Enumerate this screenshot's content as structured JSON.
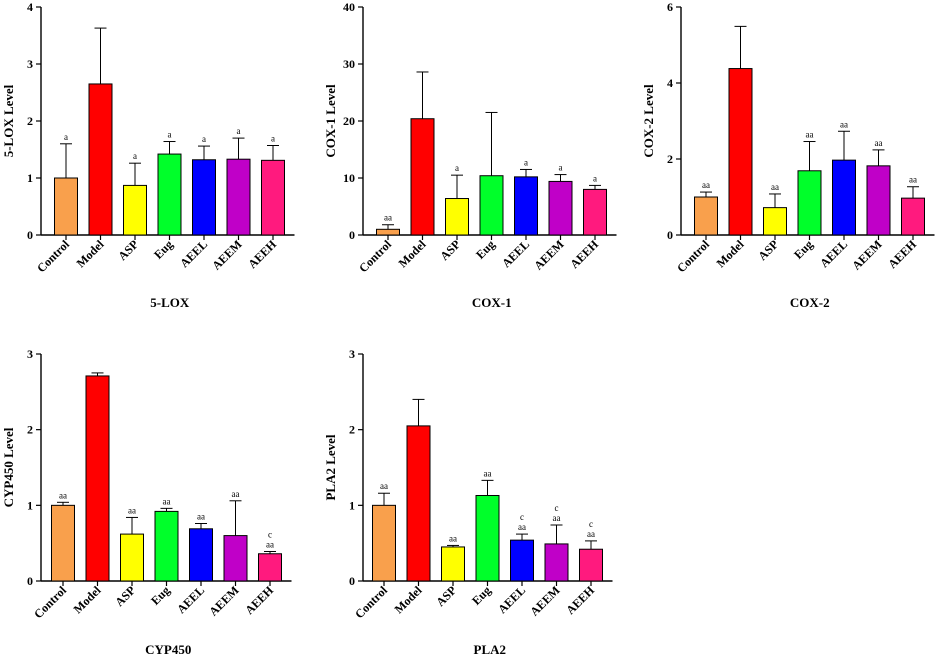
{
  "chart_data": [
    {
      "type": "bar",
      "title": "5-LOX",
      "ylabel": "5-LOX Level",
      "xlabel": "",
      "ylim": [
        0,
        4
      ],
      "yticks": [
        0,
        1,
        2,
        3,
        4
      ],
      "categories": [
        "Control",
        "Model",
        "ASP",
        "Eug",
        "AEEL",
        "AEEM",
        "AEEH"
      ],
      "values": [
        1.0,
        2.65,
        0.87,
        1.42,
        1.32,
        1.33,
        1.31
      ],
      "errors": [
        0.6,
        0.98,
        0.39,
        0.22,
        0.24,
        0.37,
        0.26
      ],
      "labels": [
        [
          "a"
        ],
        [],
        [
          "a"
        ],
        [
          "a"
        ],
        [
          "a"
        ],
        [
          "a"
        ],
        [
          "a"
        ]
      ],
      "colors": [
        "#F9A04C",
        "#FF0000",
        "#FFFF00",
        "#00FF2A",
        "#0000FF",
        "#C000C8",
        "#FF1A7E"
      ]
    },
    {
      "type": "bar",
      "title": "COX-1",
      "ylabel": "COX-1 Level",
      "xlabel": "",
      "ylim": [
        0,
        40
      ],
      "yticks": [
        0,
        10,
        20,
        30,
        40
      ],
      "categories": [
        "Control",
        "Model",
        "ASP",
        "Eug",
        "AEEL",
        "AEEM",
        "AEEH"
      ],
      "values": [
        1.0,
        20.4,
        6.4,
        10.4,
        10.2,
        9.4,
        8.0
      ],
      "errors": [
        0.8,
        8.2,
        4.1,
        11.1,
        1.3,
        1.2,
        0.7
      ],
      "labels": [
        [
          "aa"
        ],
        [],
        [
          "a"
        ],
        [],
        [
          "a"
        ],
        [
          "a"
        ],
        [
          "a"
        ]
      ],
      "colors": [
        "#F9A04C",
        "#FF0000",
        "#FFFF00",
        "#00FF2A",
        "#0000FF",
        "#C000C8",
        "#FF1A7E"
      ]
    },
    {
      "type": "bar",
      "title": "COX-2",
      "ylabel": "COX-2 Level",
      "xlabel": "",
      "ylim": [
        0,
        6
      ],
      "yticks": [
        0,
        2,
        4,
        6
      ],
      "categories": [
        "Control",
        "Model",
        "ASP",
        "Eug",
        "AEEL",
        "AEEM",
        "AEEH"
      ],
      "values": [
        1.0,
        4.38,
        0.72,
        1.69,
        1.97,
        1.82,
        0.97
      ],
      "errors": [
        0.13,
        1.11,
        0.36,
        0.77,
        0.76,
        0.42,
        0.3
      ],
      "labels": [
        [
          "aa"
        ],
        [],
        [
          "aa"
        ],
        [
          "aa"
        ],
        [
          "aa"
        ],
        [
          "aa"
        ],
        [
          "aa"
        ]
      ],
      "colors": [
        "#F9A04C",
        "#FF0000",
        "#FFFF00",
        "#00FF2A",
        "#0000FF",
        "#C000C8",
        "#FF1A7E"
      ]
    },
    {
      "type": "bar",
      "title": "CYP450",
      "ylabel": "CYP450 Level",
      "xlabel": "",
      "ylim": [
        0,
        3
      ],
      "yticks": [
        0,
        1,
        2,
        3
      ],
      "categories": [
        "Control",
        "Model",
        "ASP",
        "Eug",
        "AEEL",
        "AEEM",
        "AEEH"
      ],
      "values": [
        1.0,
        2.71,
        0.62,
        0.92,
        0.69,
        0.6,
        0.36
      ],
      "errors": [
        0.04,
        0.04,
        0.22,
        0.04,
        0.07,
        0.46,
        0.03
      ],
      "labels": [
        [
          "aa"
        ],
        [],
        [
          "aa"
        ],
        [
          "aa"
        ],
        [
          "aa"
        ],
        [
          "aa"
        ],
        [
          "c",
          "aa"
        ]
      ],
      "colors": [
        "#F9A04C",
        "#FF0000",
        "#FFFF00",
        "#00FF2A",
        "#0000FF",
        "#C000C8",
        "#FF1A7E"
      ]
    },
    {
      "type": "bar",
      "title": "PLA2",
      "ylabel": "PLA2 Level",
      "xlabel": "",
      "ylim": [
        0,
        3
      ],
      "yticks": [
        0,
        1,
        2,
        3
      ],
      "categories": [
        "Control",
        "Model",
        "ASP",
        "Eug",
        "AEEL",
        "AEEM",
        "AEEH"
      ],
      "values": [
        1.0,
        2.05,
        0.45,
        1.13,
        0.54,
        0.49,
        0.42
      ],
      "errors": [
        0.16,
        0.35,
        0.02,
        0.2,
        0.08,
        0.25,
        0.11
      ],
      "labels": [
        [
          "aa"
        ],
        [],
        [
          "aa"
        ],
        [
          "aa"
        ],
        [
          "c",
          "aa"
        ],
        [
          "c",
          "aa"
        ],
        [
          "c",
          "aa"
        ]
      ],
      "colors": [
        "#F9A04C",
        "#FF0000",
        "#FFFF00",
        "#00FF2A",
        "#0000FF",
        "#C000C8",
        "#FF1A7E"
      ]
    }
  ]
}
